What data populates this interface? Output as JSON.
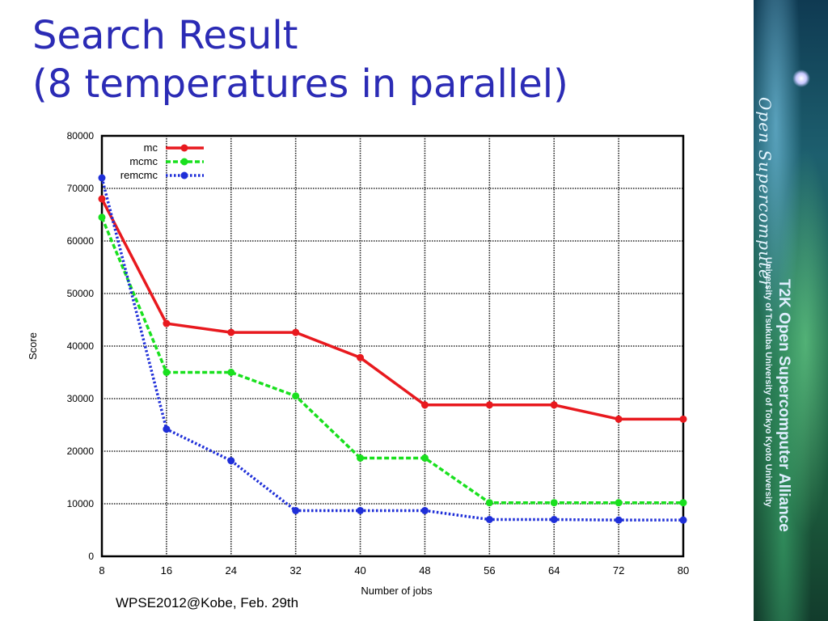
{
  "slide": {
    "title_line1": "Search Result",
    "title_line2": "(8 temperatures in parallel)",
    "footer": "WPSE2012@Kobe, Feb. 29th"
  },
  "sidebar": {
    "logo_text": "Open Supercomputer",
    "main_text": "T2K Open Supercomputer Alliance",
    "sub_text": "University of Tsukuba   University of Tokyo   Kyoto University"
  },
  "chart_data": {
    "type": "line",
    "title": "",
    "xlabel": "Number of jobs",
    "ylabel": "Score",
    "xlim": [
      8,
      80
    ],
    "ylim": [
      0,
      80000
    ],
    "x_ticks": [
      8,
      16,
      24,
      32,
      40,
      48,
      56,
      64,
      72,
      80
    ],
    "y_ticks": [
      0,
      10000,
      20000,
      30000,
      40000,
      50000,
      60000,
      70000,
      80000
    ],
    "grid": true,
    "legend_position": "top-left",
    "x": [
      8,
      16,
      24,
      32,
      40,
      48,
      56,
      64,
      72,
      80
    ],
    "series": [
      {
        "name": "mc",
        "color": "#e8191e",
        "dash": "solid",
        "values": [
          68000,
          44300,
          42600,
          42600,
          37800,
          28800,
          28800,
          28800,
          26100,
          26100
        ]
      },
      {
        "name": "mcmc",
        "color": "#19e01e",
        "dash": "dash",
        "values": [
          64500,
          35000,
          35000,
          30500,
          18700,
          18700,
          10200,
          10200,
          10200,
          10200
        ]
      },
      {
        "name": "remcmc",
        "color": "#1f2fd8",
        "dash": "dot",
        "values": [
          72000,
          24200,
          18200,
          8700,
          8700,
          8700,
          7000,
          7000,
          6900,
          6900
        ]
      }
    ]
  }
}
